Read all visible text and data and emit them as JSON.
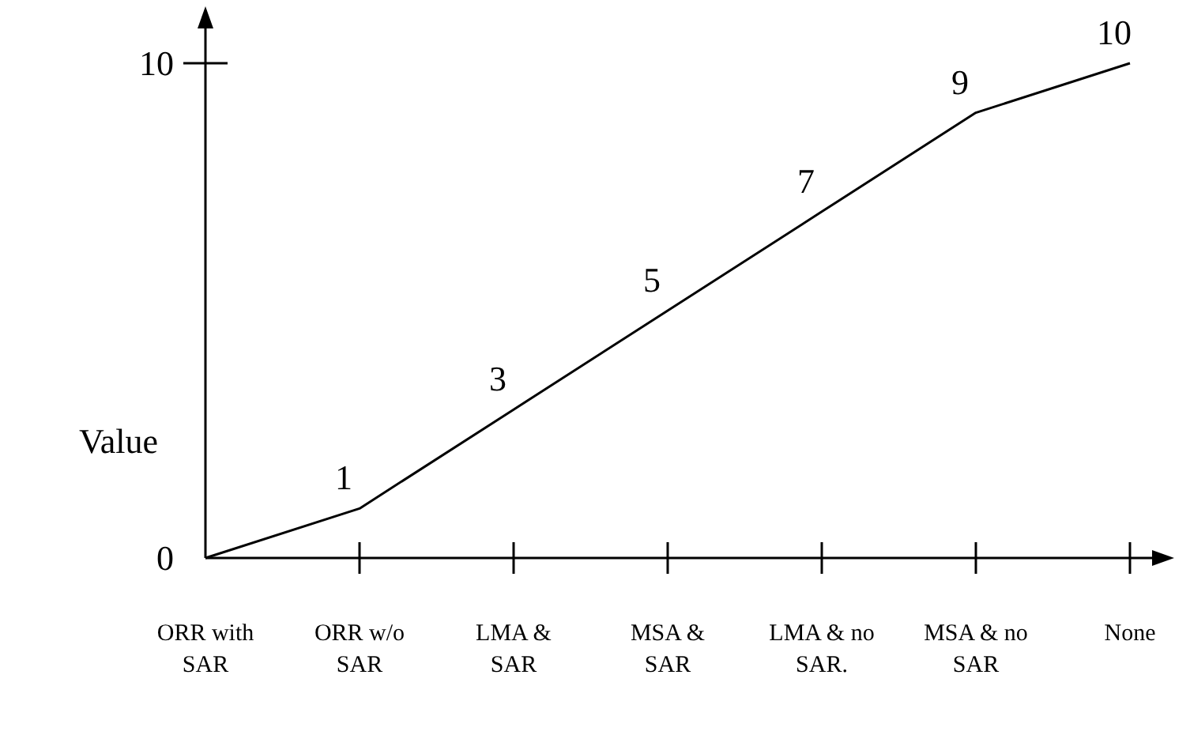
{
  "chart_data": {
    "type": "line",
    "categories": [
      "ORR with SAR",
      "ORR w/o SAR",
      "LMA & SAR",
      "MSA & SAR",
      "LMA & no SAR.",
      "MSA & no SAR",
      "None"
    ],
    "values": [
      0,
      1,
      3,
      5,
      7,
      9,
      10
    ],
    "value_labels": [
      null,
      "1",
      "3",
      "5",
      "7",
      "9",
      "10"
    ],
    "color": "#000000",
    "ylabel": "Value",
    "ylim": [
      0,
      10
    ],
    "yticks": [
      0,
      10
    ],
    "grid": false,
    "marker": "none",
    "line_style": "solid"
  }
}
